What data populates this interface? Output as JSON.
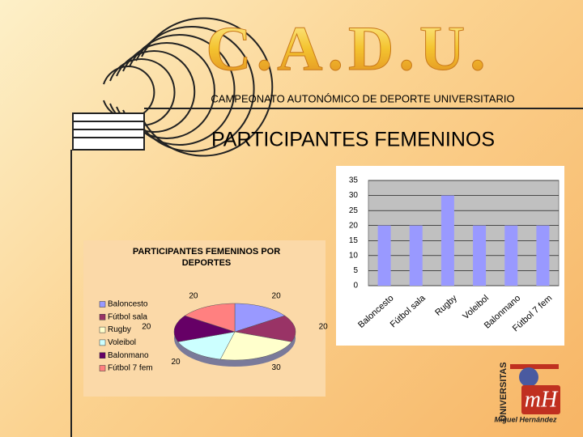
{
  "header": {
    "logo_text": "C.A.D.U.",
    "subtitle": "CAMPEONATO AUTONÓMICO DE DEPORTE UNIVERSITARIO",
    "title": "PARTICIPANTES FEMENINOS"
  },
  "chart_data": [
    {
      "type": "bar",
      "categories": [
        "Baloncesto",
        "Fútbol sala",
        "Rugby",
        "Voleibol",
        "Balonmano",
        "Fútbol 7 fem"
      ],
      "values": [
        20,
        20,
        30,
        20,
        20,
        20
      ],
      "color": "#9999ff",
      "ylim": [
        0,
        35
      ],
      "yticks": [
        0,
        5,
        10,
        15,
        20,
        25,
        30,
        35
      ],
      "grid": true
    },
    {
      "type": "pie",
      "title": "PARTICIPANTES FEMENINOS POR DEPORTES",
      "categories": [
        "Baloncesto",
        "Fútbol sala",
        "Rugby",
        "Voleibol",
        "Balonmano",
        "Fútbol 7 fem"
      ],
      "values": [
        20,
        20,
        30,
        20,
        20,
        20
      ],
      "colors": [
        "#9999ff",
        "#993366",
        "#ffffcc",
        "#ccffff",
        "#660066",
        "#ff8080"
      ]
    }
  ],
  "logo": {
    "vertical": "UNIVERSITAS",
    "mark": "mH",
    "name": "Miguel Hernández"
  }
}
